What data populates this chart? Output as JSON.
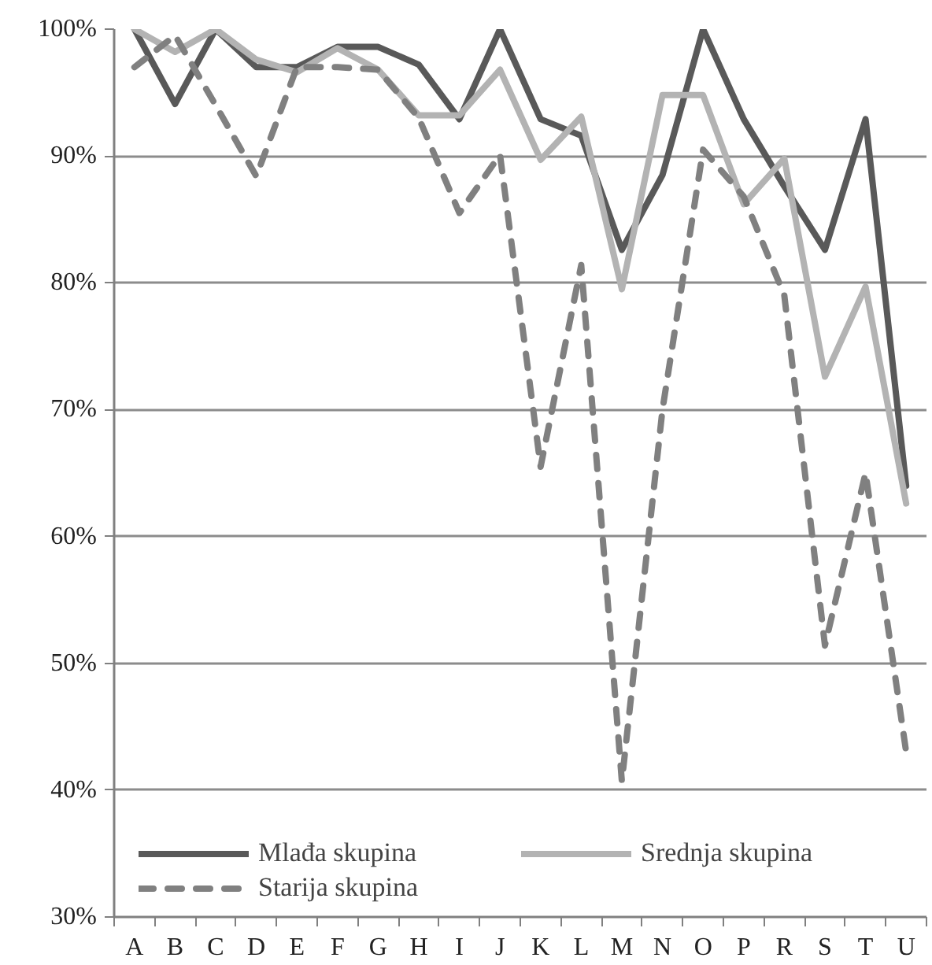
{
  "chart_data": {
    "type": "line",
    "categories": [
      "A",
      "B",
      "C",
      "D",
      "E",
      "F",
      "G",
      "H",
      "I",
      "J",
      "K",
      "L",
      "M",
      "N",
      "O",
      "P",
      "R",
      "S",
      "T",
      "U"
    ],
    "series": [
      {
        "name": "Mlađa skupina",
        "color": "#595959",
        "line_style": "solid",
        "values": [
          100,
          94.1,
          100,
          97,
          97,
          98.6,
          98.6,
          97.2,
          92.9,
          100,
          92.9,
          91.6,
          82.6,
          88.5,
          100,
          92.9,
          87.6,
          82.6,
          92.9,
          64
        ]
      },
      {
        "name": "Srednja skupina",
        "color": "#b3b3b3",
        "line_style": "solid",
        "values": [
          100,
          98.2,
          100,
          97.6,
          96.6,
          98.5,
          96.8,
          93.2,
          93.2,
          96.8,
          89.7,
          93.1,
          79.5,
          94.8,
          94.8,
          86.2,
          89.8,
          72.6,
          79.7,
          62.6
        ]
      },
      {
        "name": "Starija skupina",
        "color": "#808080",
        "line_style": "dashed",
        "values": [
          97,
          99.5,
          94,
          88.4,
          97,
          97,
          96.8,
          93,
          85.5,
          90.1,
          65.5,
          81.4,
          40.7,
          70,
          90.5,
          86.8,
          79,
          51.4,
          65,
          43
        ]
      }
    ],
    "ylim": [
      30,
      100
    ],
    "yticks": [
      {
        "value": 30,
        "label": "30%"
      },
      {
        "value": 40,
        "label": "40%"
      },
      {
        "value": 50,
        "label": "50%"
      },
      {
        "value": 60,
        "label": "60%"
      },
      {
        "value": 70,
        "label": "70%"
      },
      {
        "value": 80,
        "label": "80%"
      },
      {
        "value": 90,
        "label": "90%"
      },
      {
        "value": 100,
        "label": "100%"
      }
    ],
    "grid": "y",
    "legend": "bottom",
    "marker": "none"
  }
}
